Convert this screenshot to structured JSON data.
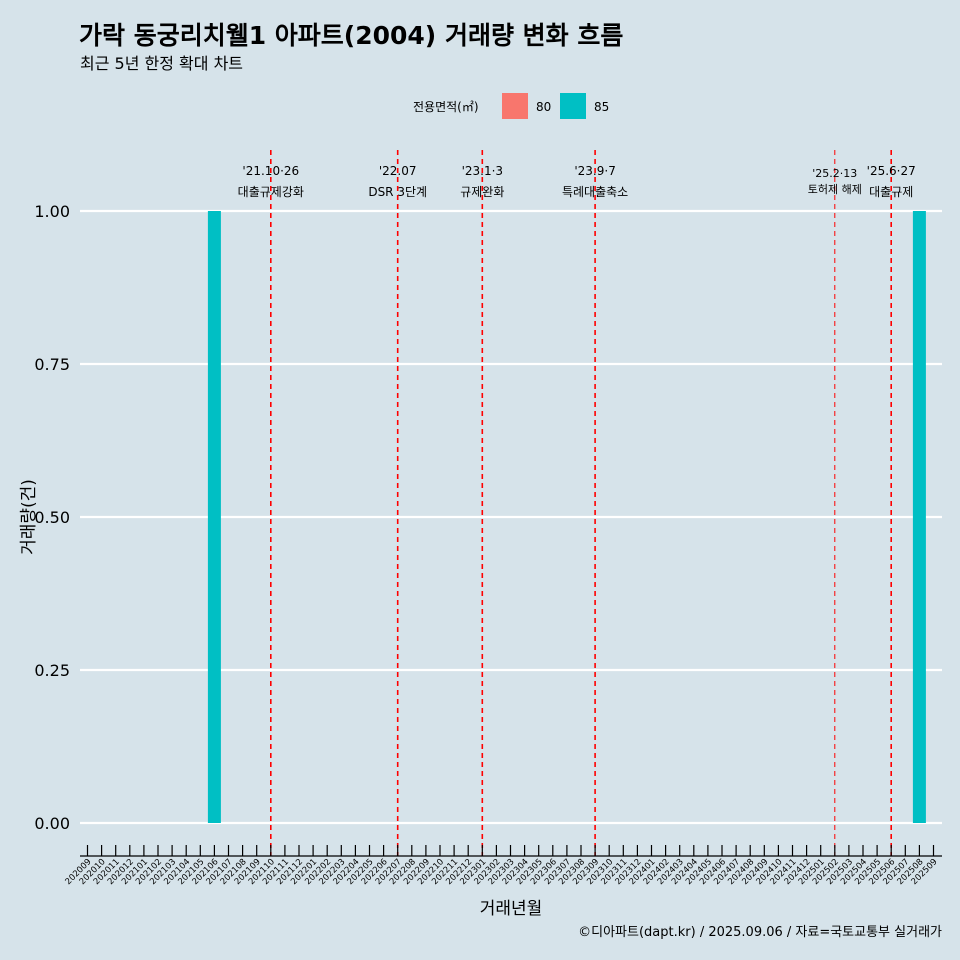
{
  "colors": {
    "background": "#d6e3ea",
    "series_80": "#f8766d",
    "series_85": "#00bfc4",
    "vline": "#ff0000",
    "grid": "#ffffff"
  },
  "chart_data": {
    "type": "bar",
    "title": "가락 동궁리치웰1 아파트(2004) 거래량 변화 흐름",
    "subtitle": "최근 5년 한정 확대 차트",
    "xlabel": "거래년월",
    "ylabel": "거래량(건)",
    "ylim": [
      0,
      1.0
    ],
    "yticks": [
      "0.00",
      "0.25",
      "0.50",
      "0.75",
      "1.00"
    ],
    "ytick_values": [
      0,
      0.25,
      0.5,
      0.75,
      1.0
    ],
    "legend": {
      "title": "전용면적(㎡)",
      "entries": [
        {
          "label": "80",
          "color": "#f8766d"
        },
        {
          "label": "85",
          "color": "#00bfc4"
        }
      ]
    },
    "categories": [
      "202009",
      "202010",
      "202011",
      "202012",
      "202101",
      "202102",
      "202103",
      "202104",
      "202105",
      "202106",
      "202107",
      "202108",
      "202109",
      "202110",
      "202111",
      "202112",
      "202201",
      "202202",
      "202203",
      "202204",
      "202205",
      "202206",
      "202207",
      "202208",
      "202209",
      "202210",
      "202211",
      "202212",
      "202301",
      "202302",
      "202303",
      "202304",
      "202305",
      "202306",
      "202307",
      "202308",
      "202309",
      "202310",
      "202311",
      "202312",
      "202401",
      "202402",
      "202403",
      "202404",
      "202405",
      "202406",
      "202407",
      "202408",
      "202409",
      "202410",
      "202411",
      "202412",
      "202501",
      "202502",
      "202503",
      "202504",
      "202505",
      "202506",
      "202507",
      "202508",
      "202509"
    ],
    "series": [
      {
        "name": "80",
        "bars": []
      },
      {
        "name": "85",
        "bars": [
          {
            "x": "202106",
            "value": 1
          },
          {
            "x": "202508",
            "value": 1
          }
        ]
      }
    ],
    "annotations": [
      {
        "x": "202110",
        "date": "'21.10·26",
        "label": "대출규제강화"
      },
      {
        "x": "202207",
        "date": "'22.07",
        "label": "DSR 3단계"
      },
      {
        "x": "202301",
        "date": "'23.1·3",
        "label": "규제완화"
      },
      {
        "x": "202309",
        "date": "'23.9·7",
        "label": "특례대출축소"
      },
      {
        "x": "202502",
        "date": "'25.2·13",
        "label": "토허제 해제"
      },
      {
        "x": "202506",
        "date": "'25.6·27",
        "label": "대출규제"
      }
    ],
    "caption": "©디아파트(dapt.kr) / 2025.09.06 / 자료=국토교통부 실거래가"
  }
}
